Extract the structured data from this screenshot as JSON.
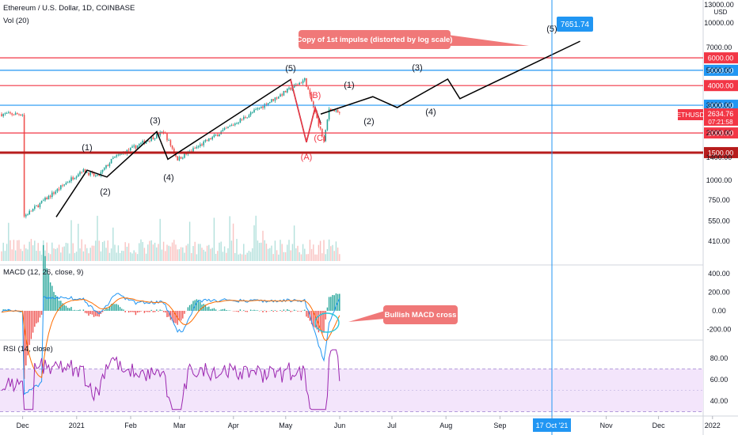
{
  "header": {
    "symbol_line": "Ethereum / U.S. Dollar, 1D, COINBASE",
    "volume_label": "Vol (20)",
    "macd_label": "MACD (12, 26, close, 9)",
    "rsi_label": "RSI (14, close)"
  },
  "price_axis": {
    "currency": "USD",
    "top_label": "13000.00",
    "ticks": [
      "10000.00",
      "7000.00",
      "5000.00",
      "3000.00",
      "2000.00",
      "1400.00",
      "1000.00",
      "750.00",
      "550.00",
      "410.00"
    ],
    "tick_values": [
      10000,
      7000,
      5000,
      3000,
      2000,
      1400,
      1000,
      750,
      550,
      410
    ]
  },
  "price_lines": [
    {
      "label": "6000.00",
      "value": 6000,
      "color": "#f23645",
      "width": 1.2
    },
    {
      "label": "5000.00",
      "value": 5000,
      "color": "#2196f3",
      "width": 1.2
    },
    {
      "label": "4000.00",
      "value": 4000,
      "color": "#f23645",
      "width": 1.2
    },
    {
      "label": "3000.00",
      "value": 3000,
      "color": "#2196f3",
      "width": 1.2
    },
    {
      "label": "2000.00",
      "value": 2000,
      "color": "#f23645",
      "width": 1.2
    },
    {
      "label": "1500.00",
      "value": 1500,
      "color": "#b71c1c",
      "width": 3
    }
  ],
  "last_price": {
    "symbol": "ETHUSD",
    "value": "2634.76",
    "countdown": "07:21:58",
    "color": "#f23645"
  },
  "target": {
    "value": "7651.74",
    "color": "#2196f3",
    "date_label": "17 Oct '21"
  },
  "time_axis": {
    "labels": [
      "Dec",
      "2021",
      "Feb",
      "Mar",
      "Apr",
      "May",
      "Jun",
      "Jul",
      "Aug",
      "Sep",
      "Oct",
      "Nov",
      "Dec",
      "2022"
    ]
  },
  "macd_axis": {
    "ticks": [
      "400.00",
      "200.00",
      "0.00",
      "-200.00"
    ],
    "values": [
      400,
      200,
      0,
      -200
    ]
  },
  "rsi_axis": {
    "ticks": [
      "80.00",
      "60.00",
      "40.00"
    ],
    "values": [
      80,
      60,
      40
    ],
    "band": [
      30,
      70
    ]
  },
  "annotations": {
    "callout_scale": "Copy of 1st impulse (distorted by log scale)",
    "callout_macd": "Bullish MACD cross"
  },
  "wave_labels": {
    "w1": "(1)",
    "w2": "(2)",
    "w3": "(3)",
    "w4": "(4)",
    "w5": "(5)",
    "wA": "(A)",
    "wB": "(B)",
    "wC": "(C)",
    "p1": "(1)",
    "p2": "(2)",
    "p3": "(3)",
    "p4": "(4)",
    "p5": "(5)"
  },
  "colors": {
    "up": "#26a69a",
    "down": "#ef5350",
    "accent_red": "#f23645",
    "accent_blue": "#2196f3",
    "rsi": "#9c27b0",
    "rsi_band": "#f3e5fb",
    "macd": "#2196f3",
    "signal": "#ff6d00"
  },
  "chart_data": {
    "type": "line",
    "title": "Ethereum / U.S. Dollar, 1D, COINBASE",
    "y_scale": "log",
    "x": [
      "2020-12-01",
      "2021-01-04",
      "2021-01-13",
      "2021-01-22",
      "2021-02-20",
      "2021-02-28",
      "2021-05-12",
      "2021-05-23",
      "2021-05-26",
      "2021-06-01"
    ],
    "series": [
      {
        "name": "ETHUSD",
        "values": [
          580,
          1160,
          1050,
          1380,
          2040,
          1360,
          4370,
          1750,
          2900,
          2634.76
        ]
      }
    ],
    "projection": {
      "x": [
        "2021-06-01",
        "2021-06-20",
        "2021-07-04",
        "2021-08-02",
        "2021-08-09",
        "2021-10-17"
      ],
      "values": [
        2634.76,
        3400,
        2900,
        4400,
        3300,
        7651.74
      ]
    },
    "horizontal_levels": [
      6000,
      5000,
      4000,
      3000,
      2000,
      1500
    ],
    "ylim": [
      350,
      13000
    ]
  }
}
